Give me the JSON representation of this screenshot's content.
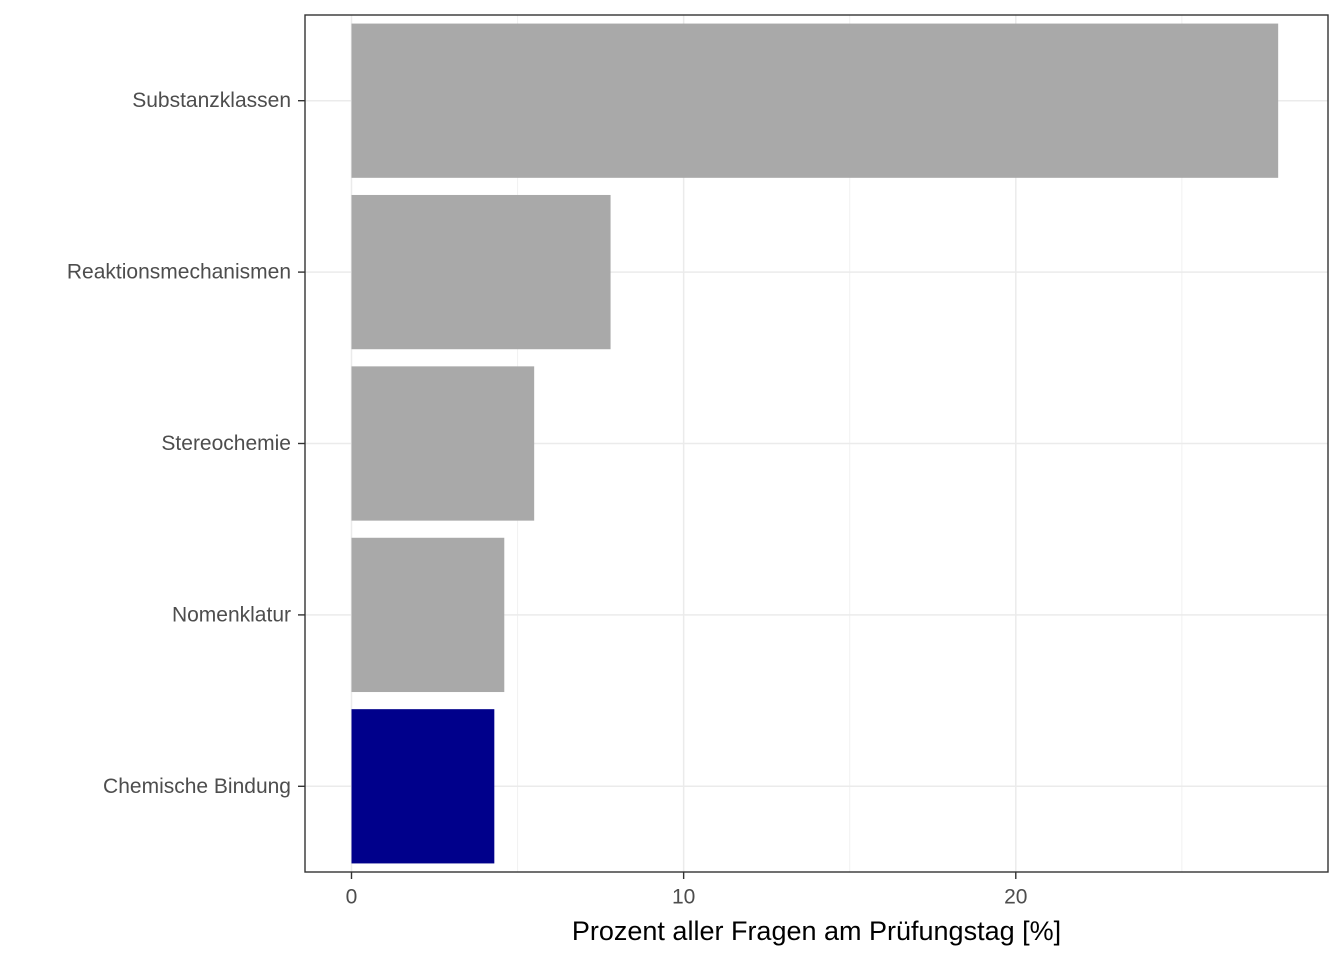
{
  "colors": {
    "default_bar": "#a9a9a9",
    "highlight_bar": "#00008b",
    "grid_major": "#ebebeb",
    "grid_minor": "#f2f2f2",
    "panel_border": "#333333"
  },
  "chart_data": {
    "type": "bar",
    "orientation": "horizontal",
    "categories": [
      "Substanzklassen",
      "Reaktionsmechanismen",
      "Stereochemie",
      "Nomenklatur",
      "Chemische Bindung"
    ],
    "values": [
      27.9,
      7.8,
      5.5,
      4.6,
      4.3
    ],
    "highlighted": [
      "Chemische Bindung"
    ],
    "xlabel": "Prozent aller Fragen am Prüfungstag [%]",
    "ylabel": "",
    "xlim": [
      -1.4,
      29.4
    ],
    "xticks": [
      "0",
      "10",
      "20"
    ],
    "grid": true,
    "legend": "none"
  }
}
